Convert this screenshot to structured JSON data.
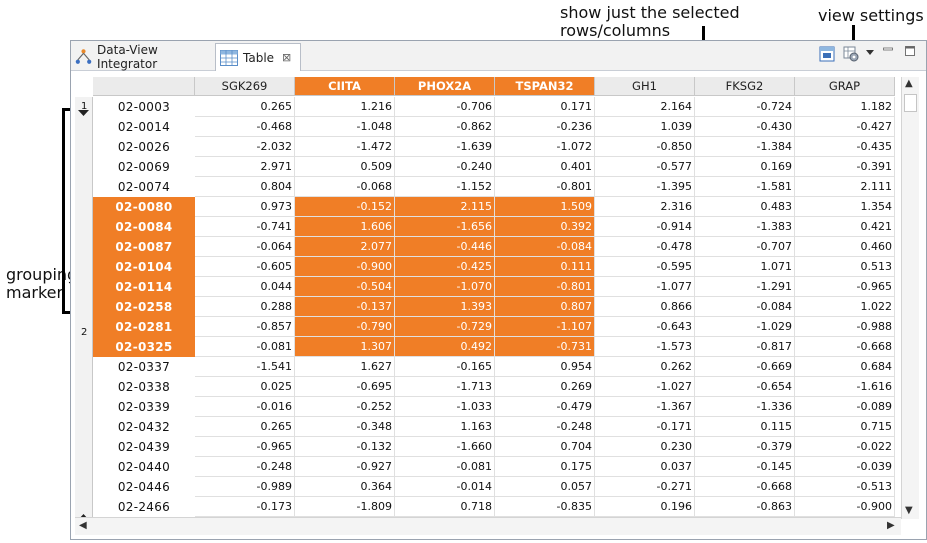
{
  "annotations": {
    "show_selected": "show just the selected\nrows/columns",
    "view_settings": "view settings",
    "grouping_marker": "grouping\nmarker"
  },
  "tabs": [
    {
      "label": "Data-View Integrator",
      "icon": "integrator-icon"
    },
    {
      "label": "Table",
      "icon": "table-icon",
      "close": "⊠"
    }
  ],
  "group_markers": [
    "1",
    "2"
  ],
  "columns": [
    {
      "label": "SGK269",
      "selected": false
    },
    {
      "label": "CIITA",
      "selected": true
    },
    {
      "label": "PHOX2A",
      "selected": true
    },
    {
      "label": "TSPAN32",
      "selected": true
    },
    {
      "label": "GH1",
      "selected": false
    },
    {
      "label": "FKSG2",
      "selected": false
    },
    {
      "label": "GRAP",
      "selected": false
    }
  ],
  "rows": [
    {
      "id": "02-0003",
      "selected": false,
      "values": [
        "0.265",
        "1.216",
        "-0.706",
        "0.171",
        "2.164",
        "-0.724",
        "1.182"
      ]
    },
    {
      "id": "02-0014",
      "selected": false,
      "values": [
        "-0.468",
        "-1.048",
        "-0.862",
        "-0.236",
        "1.039",
        "-0.430",
        "-0.427"
      ]
    },
    {
      "id": "02-0026",
      "selected": false,
      "values": [
        "-2.032",
        "-1.472",
        "-1.639",
        "-1.072",
        "-0.850",
        "-1.384",
        "-0.435"
      ]
    },
    {
      "id": "02-0069",
      "selected": false,
      "values": [
        "2.971",
        "0.509",
        "-0.240",
        "0.401",
        "-0.577",
        "0.169",
        "-0.391"
      ]
    },
    {
      "id": "02-0074",
      "selected": false,
      "values": [
        "0.804",
        "-0.068",
        "-1.152",
        "-0.801",
        "-1.395",
        "-1.581",
        "2.111"
      ]
    },
    {
      "id": "02-0080",
      "selected": true,
      "values": [
        "0.973",
        "-0.152",
        "2.115",
        "1.509",
        "2.316",
        "0.483",
        "1.354"
      ]
    },
    {
      "id": "02-0084",
      "selected": true,
      "values": [
        "-0.741",
        "1.606",
        "-1.656",
        "0.392",
        "-0.914",
        "-1.383",
        "0.421"
      ]
    },
    {
      "id": "02-0087",
      "selected": true,
      "values": [
        "-0.064",
        "2.077",
        "-0.446",
        "-0.084",
        "-0.478",
        "-0.707",
        "0.460"
      ]
    },
    {
      "id": "02-0104",
      "selected": true,
      "values": [
        "-0.605",
        "-0.900",
        "-0.425",
        "0.111",
        "-0.595",
        "1.071",
        "0.513"
      ]
    },
    {
      "id": "02-0114",
      "selected": true,
      "values": [
        "0.044",
        "-0.504",
        "-1.070",
        "-0.801",
        "-1.077",
        "-1.291",
        "-0.965"
      ]
    },
    {
      "id": "02-0258",
      "selected": true,
      "values": [
        "0.288",
        "-0.137",
        "1.393",
        "0.807",
        "0.866",
        "-0.084",
        "1.022"
      ]
    },
    {
      "id": "02-0281",
      "selected": true,
      "values": [
        "-0.857",
        "-0.790",
        "-0.729",
        "-1.107",
        "-0.643",
        "-1.029",
        "-0.988"
      ]
    },
    {
      "id": "02-0325",
      "selected": true,
      "values": [
        "-0.081",
        "1.307",
        "0.492",
        "-0.731",
        "-1.573",
        "-0.817",
        "-0.668"
      ]
    },
    {
      "id": "02-0337",
      "selected": false,
      "values": [
        "-1.541",
        "1.627",
        "-0.165",
        "0.954",
        "0.262",
        "-0.669",
        "0.684"
      ]
    },
    {
      "id": "02-0338",
      "selected": false,
      "values": [
        "0.025",
        "-0.695",
        "-1.713",
        "0.269",
        "-1.027",
        "-0.654",
        "-1.616"
      ]
    },
    {
      "id": "02-0339",
      "selected": false,
      "values": [
        "-0.016",
        "-0.252",
        "-1.033",
        "-0.479",
        "-1.367",
        "-1.336",
        "-0.089"
      ]
    },
    {
      "id": "02-0432",
      "selected": false,
      "values": [
        "0.265",
        "-0.348",
        "1.163",
        "-0.248",
        "-0.171",
        "0.115",
        "0.715"
      ]
    },
    {
      "id": "02-0439",
      "selected": false,
      "values": [
        "-0.965",
        "-0.132",
        "-1.660",
        "0.704",
        "0.230",
        "-0.379",
        "-0.022"
      ]
    },
    {
      "id": "02-0440",
      "selected": false,
      "values": [
        "-0.248",
        "-0.927",
        "-0.081",
        "0.175",
        "0.037",
        "-0.145",
        "-0.039"
      ]
    },
    {
      "id": "02-0446",
      "selected": false,
      "values": [
        "-0.989",
        "0.364",
        "-0.014",
        "0.057",
        "-0.271",
        "-0.668",
        "-0.513"
      ]
    },
    {
      "id": "02-2466",
      "selected": false,
      "values": [
        "-0.173",
        "-1.809",
        "0.718",
        "-0.835",
        "0.196",
        "-0.863",
        "-0.900"
      ]
    }
  ],
  "colors": {
    "selection": "#f07e26",
    "header_bg": "#ebebeb"
  }
}
